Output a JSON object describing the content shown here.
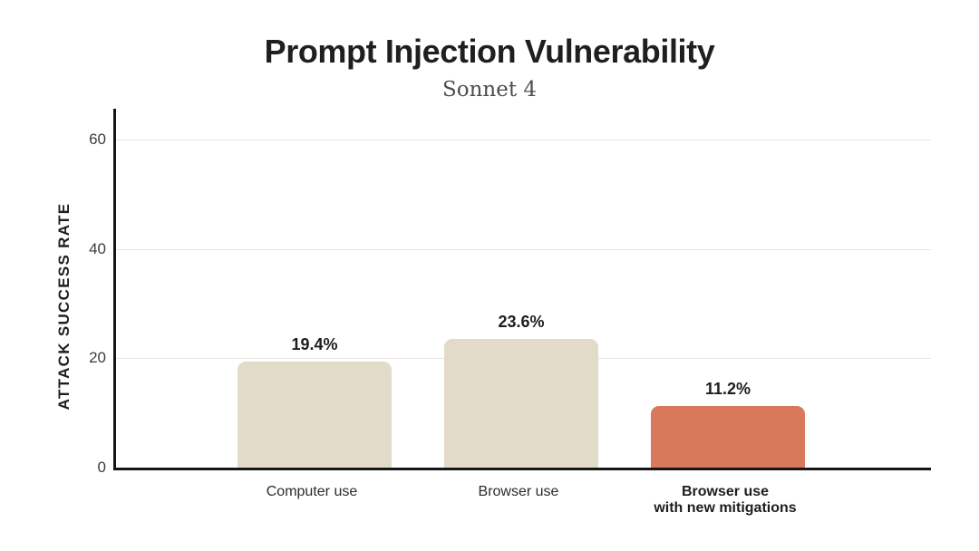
{
  "chart_data": {
    "type": "bar",
    "title": "Prompt Injection Vulnerability",
    "subtitle": "Sonnet 4",
    "ylabel": "ATTACK SUCCESS RATE",
    "xlabel": "",
    "categories": [
      "Computer use",
      "Browser use",
      "Browser use\nwith new mitigations"
    ],
    "category_bold": [
      false,
      false,
      true
    ],
    "values": [
      19.4,
      23.6,
      11.2
    ],
    "value_labels": [
      "19.4%",
      "23.6%",
      "11.2%"
    ],
    "bar_colors": [
      "#e3dbc9",
      "#e3dbc9",
      "#d7795a"
    ],
    "yticks": [
      0,
      20,
      40,
      60
    ],
    "ylim": [
      0,
      65.7
    ],
    "grid": true,
    "legend": "none",
    "colors": {
      "axis": "#161616",
      "gridline": "#e8e5df",
      "title": "#1f1f1f",
      "subtitle": "#4d4d4d",
      "tick_label": "#3c3c3c",
      "value_label": "#1d1d1d"
    }
  }
}
